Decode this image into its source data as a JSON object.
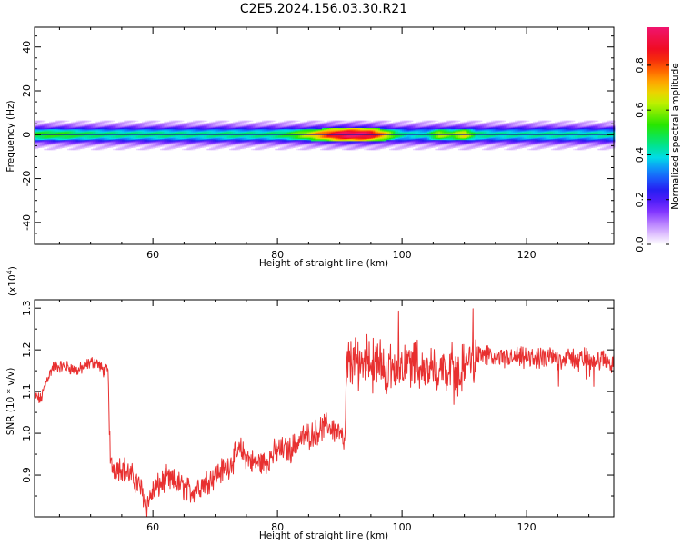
{
  "figure": {
    "title": "C2E5.2024.156.03.30.R21"
  },
  "chart_data": [
    {
      "type": "heatmap",
      "xlabel": "Height of straight line (km)",
      "ylabel": "Frequency (Hz)",
      "xlim": [
        41,
        134
      ],
      "ylim": [
        -50,
        49
      ],
      "xticks": [
        "60",
        "80",
        "100",
        "120"
      ],
      "yticks": [
        "40",
        "20",
        "0",
        "-20",
        "-40"
      ],
      "colorbar": {
        "label": "Normalized spectral amplitude",
        "range": [
          0,
          0.97
        ],
        "ticks": [
          "0.0",
          "0.2",
          "0.4",
          "0.6",
          "0.8"
        ]
      },
      "band_center_hz": 0,
      "band_halfwidth_hz": 2.5,
      "amplitude_profile": {
        "x": [
          41,
          45,
          48,
          52,
          56,
          60,
          64,
          68,
          72,
          76,
          80,
          83,
          85,
          87,
          89,
          91,
          93,
          95,
          97,
          99,
          101,
          104,
          106,
          108,
          110,
          112,
          116,
          120,
          124,
          128,
          134
        ],
        "value": [
          0.5,
          0.52,
          0.48,
          0.45,
          0.44,
          0.45,
          0.44,
          0.43,
          0.45,
          0.44,
          0.46,
          0.55,
          0.65,
          0.75,
          0.88,
          0.95,
          0.96,
          0.9,
          0.72,
          0.5,
          0.4,
          0.42,
          0.62,
          0.55,
          0.68,
          0.45,
          0.42,
          0.42,
          0.43,
          0.42,
          0.42
        ]
      }
    },
    {
      "type": "line",
      "xlabel": "Height of straight line (km)",
      "ylabel": "SNR (10 * v/v)",
      "y_multiplier": "(x10",
      "y_multiplier_exp": "4",
      "y_multiplier_close": ")",
      "xlim": [
        41,
        134
      ],
      "ylim": [
        0.8,
        1.32
      ],
      "xticks": [
        "60",
        "80",
        "100",
        "120"
      ],
      "yticks": [
        "0.9",
        "1.0",
        "1.1",
        "1.2",
        "1.3"
      ],
      "color": "#e83030",
      "series": [
        {
          "x": [
            41,
            42,
            43,
            44,
            46,
            48,
            50,
            51,
            52,
            52.8,
            53.2,
            55,
            57,
            58,
            59,
            60,
            62,
            64,
            66,
            68,
            70,
            72,
            74,
            76,
            78,
            80,
            82,
            84,
            86,
            88,
            90,
            90.8,
            91.2,
            93,
            95,
            97,
            99,
            101,
            103,
            105,
            107,
            109,
            111,
            113,
            115,
            118,
            122,
            126,
            130,
            134
          ],
          "y": [
            1.09,
            1.08,
            1.13,
            1.16,
            1.16,
            1.15,
            1.17,
            1.17,
            1.15,
            1.15,
            0.92,
            0.92,
            0.89,
            0.87,
            0.83,
            0.86,
            0.89,
            0.88,
            0.86,
            0.88,
            0.9,
            0.92,
            0.96,
            0.93,
            0.93,
            0.96,
            0.96,
            0.99,
            1.0,
            1.02,
            1.0,
            0.97,
            1.17,
            1.17,
            1.18,
            1.15,
            1.16,
            1.17,
            1.16,
            1.15,
            1.15,
            1.14,
            1.18,
            1.19,
            1.18,
            1.18,
            1.18,
            1.18,
            1.18,
            1.17
          ]
        }
      ]
    }
  ]
}
